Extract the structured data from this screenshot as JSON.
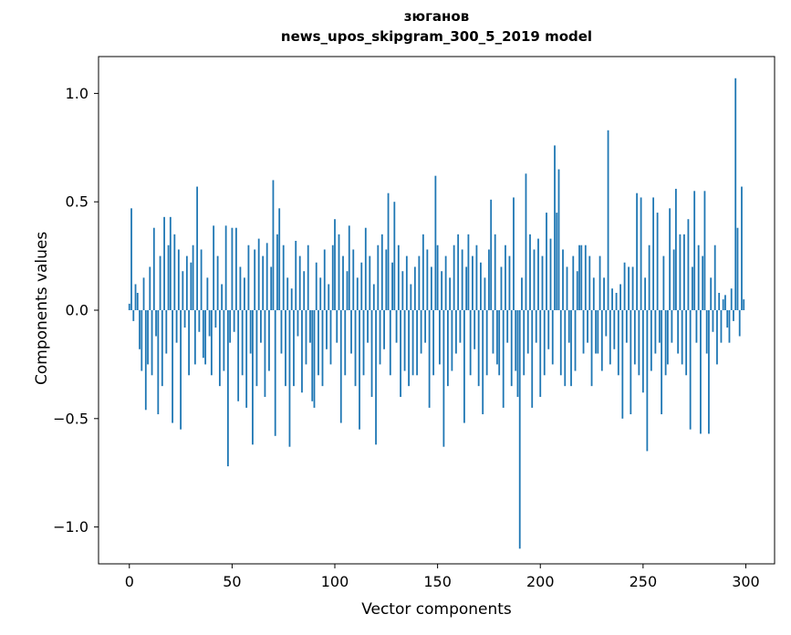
{
  "figure": {
    "title_line1": "зюганов",
    "title_line2": "news_upos_skipgram_300_5_2019 model",
    "xlabel": "Vector components",
    "ylabel": "Components values"
  },
  "chart_data": {
    "type": "bar",
    "title": "зюганов — news_upos_skipgram_300_5_2019 model",
    "xlabel": "Vector components",
    "ylabel": "Components values",
    "bar_color": "#1f77b4",
    "n_components": 300,
    "xlim": [
      -15,
      314
    ],
    "ylim": [
      -1.17,
      1.17
    ],
    "grid": false,
    "legend": "none",
    "xticks": [
      {
        "value": 0,
        "label": "0"
      },
      {
        "value": 50,
        "label": "50"
      },
      {
        "value": 100,
        "label": "100"
      },
      {
        "value": 150,
        "label": "150"
      },
      {
        "value": 200,
        "label": "200"
      },
      {
        "value": 250,
        "label": "250"
      },
      {
        "value": 300,
        "label": "300"
      }
    ],
    "yticks": [
      {
        "value": -1.0,
        "label": "−1.0"
      },
      {
        "value": -0.5,
        "label": "−0.5"
      },
      {
        "value": 0.0,
        "label": "0.0"
      },
      {
        "value": 0.5,
        "label": "0.5"
      },
      {
        "value": 1.0,
        "label": "1.0"
      }
    ],
    "values": [
      0.03,
      0.47,
      -0.05,
      0.12,
      0.08,
      -0.18,
      -0.28,
      0.15,
      -0.46,
      -0.25,
      0.2,
      -0.3,
      0.38,
      -0.12,
      -0.48,
      0.25,
      -0.35,
      0.43,
      -0.2,
      0.3,
      0.43,
      -0.52,
      0.35,
      -0.15,
      0.28,
      -0.55,
      0.18,
      -0.08,
      0.25,
      -0.3,
      0.22,
      0.3,
      -0.25,
      0.57,
      -0.1,
      0.28,
      -0.22,
      -0.25,
      0.15,
      -0.12,
      -0.3,
      0.39,
      -0.08,
      0.25,
      -0.35,
      0.12,
      -0.28,
      0.39,
      -0.72,
      -0.15,
      0.38,
      -0.1,
      0.38,
      -0.42,
      0.2,
      -0.3,
      0.15,
      -0.45,
      0.3,
      -0.2,
      -0.62,
      0.28,
      -0.35,
      0.33,
      -0.15,
      0.25,
      -0.4,
      0.31,
      -0.28,
      0.2,
      0.6,
      -0.58,
      0.35,
      0.47,
      -0.2,
      0.3,
      -0.35,
      0.15,
      -0.63,
      0.1,
      -0.35,
      0.32,
      -0.12,
      0.25,
      -0.38,
      0.18,
      -0.25,
      0.3,
      -0.15,
      -0.42,
      -0.45,
      0.22,
      -0.3,
      0.15,
      -0.35,
      0.28,
      -0.18,
      0.12,
      -0.25,
      0.3,
      0.42,
      -0.15,
      0.35,
      -0.52,
      0.25,
      -0.3,
      0.18,
      0.39,
      -0.2,
      0.28,
      -0.35,
      0.15,
      -0.55,
      0.22,
      -0.3,
      0.38,
      -0.15,
      0.25,
      -0.4,
      0.12,
      -0.62,
      0.3,
      -0.25,
      0.35,
      -0.18,
      0.28,
      0.54,
      -0.3,
      0.22,
      0.5,
      -0.15,
      0.3,
      -0.4,
      0.18,
      -0.28,
      0.25,
      -0.35,
      0.12,
      -0.3,
      0.2,
      -0.3,
      0.25,
      -0.2,
      0.35,
      -0.15,
      0.28,
      -0.45,
      0.2,
      -0.3,
      0.62,
      0.3,
      -0.25,
      0.18,
      -0.63,
      0.25,
      -0.35,
      0.15,
      -0.28,
      0.3,
      -0.2,
      0.35,
      -0.15,
      0.28,
      -0.52,
      0.2,
      0.35,
      -0.3,
      0.25,
      -0.18,
      0.3,
      -0.35,
      0.22,
      -0.48,
      0.15,
      -0.3,
      0.28,
      0.51,
      -0.2,
      0.35,
      -0.25,
      -0.3,
      0.2,
      -0.45,
      0.3,
      -0.15,
      0.25,
      -0.35,
      0.52,
      -0.28,
      -0.4,
      -1.1,
      0.15,
      -0.3,
      0.63,
      -0.2,
      0.35,
      -0.45,
      0.28,
      -0.15,
      0.33,
      -0.4,
      0.25,
      -0.3,
      0.45,
      -0.18,
      0.33,
      -0.25,
      0.76,
      0.45,
      0.65,
      -0.3,
      0.28,
      -0.35,
      0.2,
      -0.15,
      -0.35,
      0.25,
      -0.28,
      0.18,
      0.3,
      0.3,
      -0.2,
      0.3,
      -0.15,
      0.25,
      -0.35,
      0.15,
      -0.2,
      -0.2,
      0.25,
      -0.28,
      0.15,
      -0.12,
      0.83,
      -0.25,
      0.1,
      -0.18,
      0.08,
      -0.3,
      0.12,
      -0.5,
      0.22,
      -0.15,
      0.2,
      -0.48,
      0.2,
      -0.25,
      0.54,
      -0.3,
      0.52,
      -0.38,
      0.15,
      -0.65,
      0.3,
      -0.28,
      0.52,
      -0.2,
      0.45,
      -0.15,
      -0.48,
      0.25,
      -0.3,
      -0.25,
      0.47,
      -0.15,
      0.28,
      0.56,
      -0.2,
      0.35,
      -0.25,
      0.35,
      -0.3,
      0.42,
      -0.55,
      0.2,
      0.55,
      -0.15,
      0.3,
      -0.57,
      0.25,
      0.55,
      -0.2,
      -0.57,
      0.15,
      -0.1,
      0.3,
      -0.25,
      0.08,
      -0.15,
      0.05,
      0.07,
      -0.08,
      -0.15,
      0.1,
      -0.05,
      1.07,
      0.38,
      -0.12,
      0.57,
      0.05
    ]
  }
}
